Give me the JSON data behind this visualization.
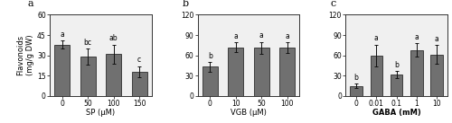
{
  "panel_a": {
    "title": "a",
    "categories": [
      "0",
      "50",
      "100",
      "150"
    ],
    "values": [
      38,
      29,
      31,
      18
    ],
    "errors": [
      3,
      6,
      7,
      4
    ],
    "letters": [
      "a",
      "bc",
      "ab",
      "c"
    ],
    "xlabel": "SP (μM)",
    "ylabel": "Flavonoids\n(mg/g DW)",
    "ylim": [
      0,
      60
    ],
    "yticks": [
      0,
      15,
      30,
      45,
      60
    ]
  },
  "panel_b": {
    "title": "b",
    "categories": [
      "0",
      "10",
      "50",
      "100"
    ],
    "values": [
      43,
      72,
      71,
      71
    ],
    "errors": [
      7,
      7,
      9,
      8
    ],
    "letters": [
      "b",
      "a",
      "a",
      "a"
    ],
    "xlabel": "VGB (μM)",
    "ylabel": "",
    "ylim": [
      0,
      120
    ],
    "yticks": [
      0,
      30,
      60,
      90,
      120
    ]
  },
  "panel_c": {
    "title": "c",
    "categories": [
      "0",
      "0.01",
      "0.1",
      "1",
      "10"
    ],
    "values": [
      15,
      60,
      32,
      68,
      61
    ],
    "errors": [
      3,
      16,
      5,
      10,
      14
    ],
    "letters": [
      "b",
      "a",
      "b",
      "a",
      "a"
    ],
    "xlabel": "GABA (mM)",
    "ylabel": "",
    "ylim": [
      0,
      120
    ],
    "yticks": [
      0,
      30,
      60,
      90,
      120
    ]
  },
  "bar_color": "#707070",
  "bar_edgecolor": "#111111",
  "background_color": "#ffffff",
  "plot_bg_color": "#f0f0f0",
  "bar_width": 0.6,
  "letter_fontsize": 5.5,
  "axis_label_fontsize": 6.0,
  "tick_fontsize": 5.5,
  "title_fontsize": 8,
  "ecolor": "#111111",
  "capsize": 1.5
}
